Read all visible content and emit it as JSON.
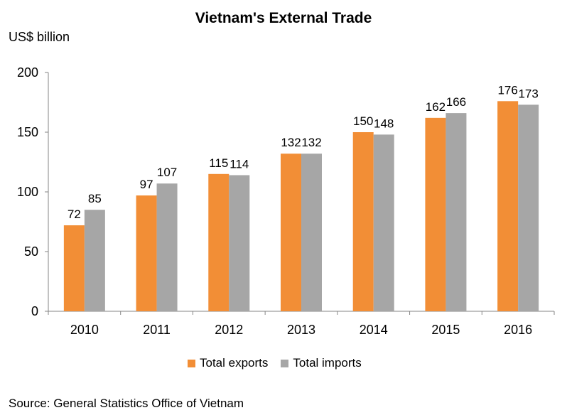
{
  "chart_data": {
    "type": "bar",
    "title": "Vietnam's External Trade",
    "ylabel": "US$ billion",
    "categories": [
      "2010",
      "2011",
      "2012",
      "2013",
      "2014",
      "2015",
      "2016"
    ],
    "series": [
      {
        "name": "Total exports",
        "values": [
          72,
          97,
          115,
          132,
          150,
          162,
          176
        ],
        "color": "#F28E36"
      },
      {
        "name": "Total imports",
        "values": [
          85,
          107,
          114,
          132,
          148,
          166,
          173
        ],
        "color": "#A6A6A6"
      }
    ],
    "ylim": [
      0,
      200
    ],
    "yticks": [
      0,
      50,
      100,
      150,
      200
    ],
    "grid": false,
    "legend_position": "bottom"
  },
  "source": "Source: General Statistics Office of Vietnam"
}
